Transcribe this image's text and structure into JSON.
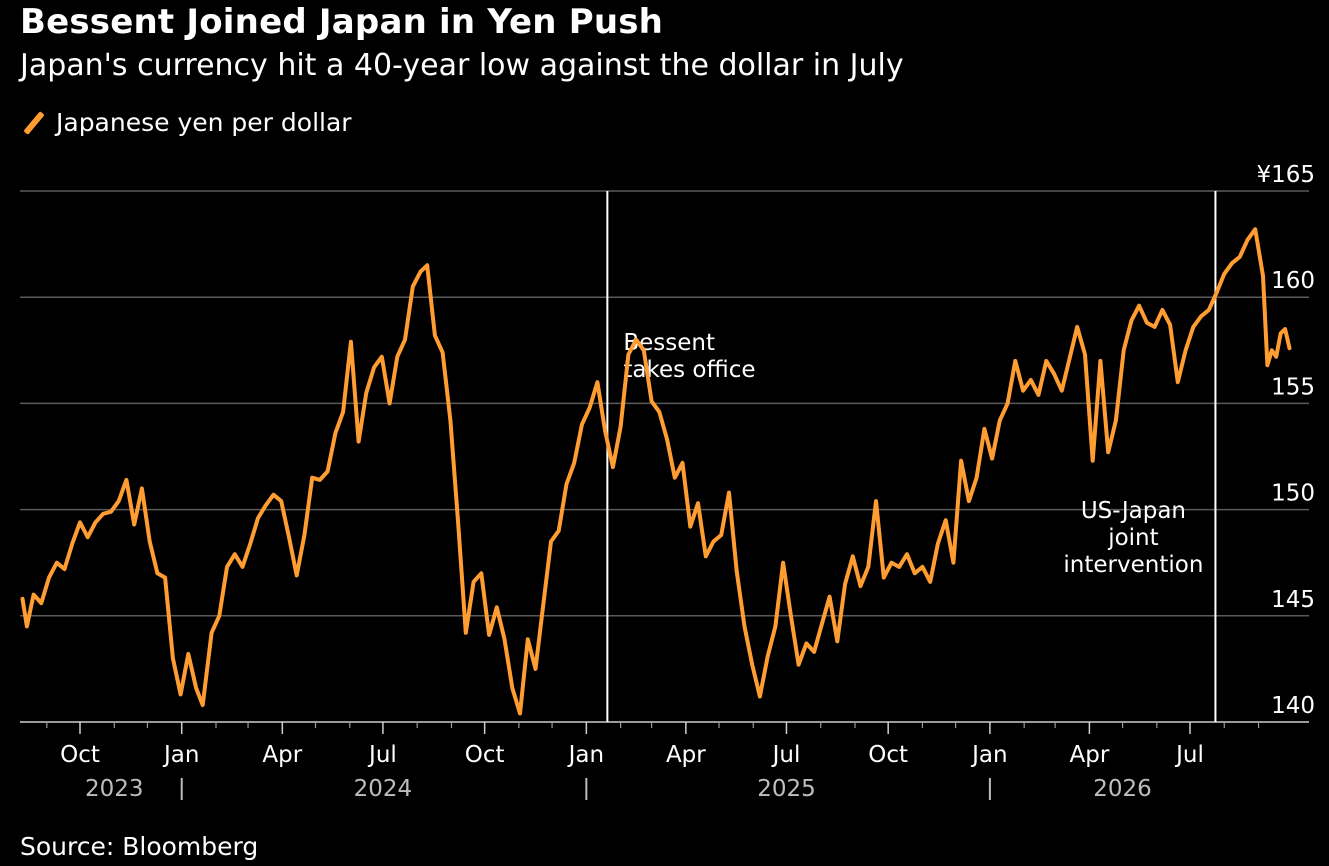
{
  "header": {
    "title": "Bessent Joined Japan in Yen Push",
    "subtitle": "Japan's currency hit a 40-year low against the dollar in July"
  },
  "footer": {
    "source": "Source: Bloomberg"
  },
  "colors": {
    "series": "#ff9d33",
    "grid": "#5a5a5a",
    "background": "#000000",
    "text": "#ffffff",
    "year_text": "#bdbdbd"
  },
  "chart_data": {
    "type": "line",
    "title": "Bessent Joined Japan in Yen Push",
    "subtitle": "Japan's currency hit a 40-year low against the dollar in July",
    "xlabel": "",
    "ylabel": "",
    "ylim": [
      140,
      165
    ],
    "xlim": [
      "2023-08-10",
      "2026-08-31"
    ],
    "grid": true,
    "legend_position": "top-left",
    "y_ticks": [
      {
        "value": 165,
        "label": "¥165"
      },
      {
        "value": 160,
        "label": "160"
      },
      {
        "value": 155,
        "label": "155"
      },
      {
        "value": 150,
        "label": "150"
      },
      {
        "value": 145,
        "label": "145"
      },
      {
        "value": 140,
        "label": "140"
      }
    ],
    "x_ticks": [
      {
        "date": "2023-10-01",
        "label": "Oct"
      },
      {
        "date": "2024-01-01",
        "label": "Jan"
      },
      {
        "date": "2024-04-01",
        "label": "Apr"
      },
      {
        "date": "2024-07-01",
        "label": "Jul"
      },
      {
        "date": "2024-10-01",
        "label": "Oct"
      },
      {
        "date": "2025-01-01",
        "label": "Jan"
      },
      {
        "date": "2025-04-01",
        "label": "Apr"
      },
      {
        "date": "2025-07-01",
        "label": "Jul"
      },
      {
        "date": "2025-10-01",
        "label": "Oct"
      },
      {
        "date": "2026-01-01",
        "label": "Jan"
      },
      {
        "date": "2026-04-01",
        "label": "Apr"
      },
      {
        "date": "2026-07-01",
        "label": "Jul"
      }
    ],
    "year_labels": [
      {
        "label": "2023",
        "date": "2023-11-01"
      },
      {
        "label": "2024",
        "date": "2024-07-01"
      },
      {
        "label": "2025",
        "date": "2025-07-01"
      },
      {
        "label": "2026",
        "date": "2026-05-01"
      }
    ],
    "year_separators": [
      "2024-01-01",
      "2025-01-01",
      "2026-01-01"
    ],
    "annotations": [
      {
        "date": "2025-01-20",
        "lines": [
          "Bessent",
          "takes office"
        ],
        "position": "right-top"
      },
      {
        "date": "2026-07-24",
        "lines": [
          "US-Japan",
          "joint",
          "intervention"
        ],
        "position": "left-middle"
      }
    ],
    "series": [
      {
        "name": "Japanese yen per dollar",
        "points": [
          [
            "2023-08-10",
            145.8
          ],
          [
            "2023-08-14",
            144.5
          ],
          [
            "2023-08-20",
            146.0
          ],
          [
            "2023-08-27",
            145.6
          ],
          [
            "2023-09-03",
            146.8
          ],
          [
            "2023-09-10",
            147.5
          ],
          [
            "2023-09-17",
            147.2
          ],
          [
            "2023-09-24",
            148.4
          ],
          [
            "2023-10-01",
            149.4
          ],
          [
            "2023-10-08",
            148.7
          ],
          [
            "2023-10-15",
            149.4
          ],
          [
            "2023-10-22",
            149.8
          ],
          [
            "2023-10-29",
            149.9
          ],
          [
            "2023-11-05",
            150.4
          ],
          [
            "2023-11-12",
            151.4
          ],
          [
            "2023-11-19",
            149.3
          ],
          [
            "2023-11-26",
            151.0
          ],
          [
            "2023-12-03",
            148.5
          ],
          [
            "2023-12-10",
            147.0
          ],
          [
            "2023-12-17",
            146.8
          ],
          [
            "2023-12-24",
            143.0
          ],
          [
            "2023-12-31",
            141.3
          ],
          [
            "2024-01-07",
            143.2
          ],
          [
            "2024-01-14",
            141.6
          ],
          [
            "2024-01-20",
            140.8
          ],
          [
            "2024-01-28",
            144.2
          ],
          [
            "2024-02-04",
            145.0
          ],
          [
            "2024-02-11",
            147.3
          ],
          [
            "2024-02-18",
            147.9
          ],
          [
            "2024-02-25",
            147.3
          ],
          [
            "2024-03-03",
            148.4
          ],
          [
            "2024-03-10",
            149.6
          ],
          [
            "2024-03-17",
            150.2
          ],
          [
            "2024-03-24",
            150.7
          ],
          [
            "2024-03-31",
            150.4
          ],
          [
            "2024-04-07",
            148.7
          ],
          [
            "2024-04-14",
            146.9
          ],
          [
            "2024-04-21",
            148.8
          ],
          [
            "2024-04-28",
            151.5
          ],
          [
            "2024-05-05",
            151.4
          ],
          [
            "2024-05-12",
            151.8
          ],
          [
            "2024-05-19",
            153.6
          ],
          [
            "2024-05-26",
            154.6
          ],
          [
            "2024-06-02",
            157.9
          ],
          [
            "2024-06-09",
            153.2
          ],
          [
            "2024-06-16",
            155.5
          ],
          [
            "2024-06-23",
            156.7
          ],
          [
            "2024-06-30",
            157.2
          ],
          [
            "2024-07-07",
            155.0
          ],
          [
            "2024-07-14",
            157.2
          ],
          [
            "2024-07-21",
            158.0
          ],
          [
            "2024-07-28",
            160.5
          ],
          [
            "2024-08-04",
            161.2
          ],
          [
            "2024-08-10",
            161.5
          ],
          [
            "2024-08-17",
            158.2
          ],
          [
            "2024-08-24",
            157.4
          ],
          [
            "2024-08-31",
            154.2
          ],
          [
            "2024-09-07",
            149.4
          ],
          [
            "2024-09-14",
            144.2
          ],
          [
            "2024-09-21",
            146.6
          ],
          [
            "2024-09-28",
            147.0
          ],
          [
            "2024-10-05",
            144.1
          ],
          [
            "2024-10-12",
            145.4
          ],
          [
            "2024-10-19",
            143.9
          ],
          [
            "2024-10-26",
            141.6
          ],
          [
            "2024-11-02",
            140.4
          ],
          [
            "2024-11-09",
            143.9
          ],
          [
            "2024-11-16",
            142.5
          ],
          [
            "2024-11-23",
            145.5
          ],
          [
            "2024-11-30",
            148.5
          ],
          [
            "2024-12-07",
            149.0
          ],
          [
            "2024-12-14",
            151.2
          ],
          [
            "2024-12-21",
            152.2
          ],
          [
            "2024-12-28",
            154.0
          ],
          [
            "2025-01-04",
            154.8
          ],
          [
            "2025-01-11",
            156.0
          ],
          [
            "2025-01-18",
            153.7
          ],
          [
            "2025-01-25",
            152.0
          ],
          [
            "2025-02-01",
            153.9
          ],
          [
            "2025-02-08",
            157.3
          ],
          [
            "2025-02-15",
            158.0
          ],
          [
            "2025-02-22",
            157.5
          ],
          [
            "2025-03-01",
            155.1
          ],
          [
            "2025-03-08",
            154.6
          ],
          [
            "2025-03-15",
            153.3
          ],
          [
            "2025-03-22",
            151.5
          ],
          [
            "2025-03-29",
            152.2
          ],
          [
            "2025-04-05",
            149.2
          ],
          [
            "2025-04-12",
            150.3
          ],
          [
            "2025-04-19",
            147.8
          ],
          [
            "2025-04-26",
            148.5
          ],
          [
            "2025-05-03",
            148.8
          ],
          [
            "2025-05-10",
            150.8
          ],
          [
            "2025-05-17",
            147.1
          ],
          [
            "2025-05-24",
            144.5
          ],
          [
            "2025-05-31",
            142.7
          ],
          [
            "2025-06-07",
            141.2
          ],
          [
            "2025-06-14",
            143.1
          ],
          [
            "2025-06-21",
            144.5
          ],
          [
            "2025-06-28",
            147.5
          ],
          [
            "2025-07-05",
            145.0
          ],
          [
            "2025-07-12",
            142.7
          ],
          [
            "2025-07-19",
            143.7
          ],
          [
            "2025-07-26",
            143.3
          ],
          [
            "2025-08-02",
            144.6
          ],
          [
            "2025-08-09",
            145.9
          ],
          [
            "2025-08-16",
            143.8
          ],
          [
            "2025-08-23",
            146.5
          ],
          [
            "2025-08-30",
            147.8
          ],
          [
            "2025-09-06",
            146.4
          ],
          [
            "2025-09-13",
            147.3
          ],
          [
            "2025-09-20",
            150.4
          ],
          [
            "2025-09-27",
            146.8
          ],
          [
            "2025-10-04",
            147.5
          ],
          [
            "2025-10-11",
            147.3
          ],
          [
            "2025-10-18",
            147.9
          ],
          [
            "2025-10-25",
            147.0
          ],
          [
            "2025-11-01",
            147.3
          ],
          [
            "2025-11-08",
            146.6
          ],
          [
            "2025-11-15",
            148.4
          ],
          [
            "2025-11-22",
            149.5
          ],
          [
            "2025-11-29",
            147.5
          ],
          [
            "2025-12-06",
            152.3
          ],
          [
            "2025-12-13",
            150.4
          ],
          [
            "2025-12-20",
            151.5
          ],
          [
            "2025-12-27",
            153.8
          ],
          [
            "2026-01-03",
            152.4
          ],
          [
            "2026-01-10",
            154.2
          ],
          [
            "2026-01-17",
            155.0
          ],
          [
            "2026-01-24",
            157.0
          ],
          [
            "2026-01-31",
            155.6
          ],
          [
            "2026-02-07",
            156.1
          ],
          [
            "2026-02-14",
            155.4
          ],
          [
            "2026-02-21",
            157.0
          ],
          [
            "2026-02-28",
            156.4
          ],
          [
            "2026-03-07",
            155.6
          ],
          [
            "2026-03-14",
            157.1
          ],
          [
            "2026-03-21",
            158.6
          ],
          [
            "2026-03-28",
            157.3
          ],
          [
            "2026-04-04",
            152.3
          ],
          [
            "2026-04-11",
            157.0
          ],
          [
            "2026-04-18",
            152.7
          ],
          [
            "2026-04-25",
            154.2
          ],
          [
            "2026-05-02",
            157.5
          ],
          [
            "2026-05-09",
            158.9
          ],
          [
            "2026-05-16",
            159.6
          ],
          [
            "2026-05-23",
            158.8
          ],
          [
            "2026-05-30",
            158.6
          ],
          [
            "2026-06-06",
            159.4
          ],
          [
            "2026-06-13",
            158.7
          ],
          [
            "2026-06-20",
            156.0
          ],
          [
            "2026-06-27",
            157.5
          ],
          [
            "2026-07-04",
            158.6
          ],
          [
            "2026-07-11",
            159.1
          ],
          [
            "2026-07-18",
            159.4
          ],
          [
            "2026-07-25",
            160.2
          ],
          [
            "2026-08-01",
            161.1
          ],
          [
            "2026-08-08",
            161.6
          ],
          [
            "2026-08-15",
            161.9
          ],
          [
            "2026-08-22",
            162.7
          ],
          [
            "2026-08-29",
            163.2
          ],
          [
            "2026-09-05",
            161.0
          ],
          [
            "2026-09-09",
            156.8
          ],
          [
            "2026-09-13",
            157.5
          ],
          [
            "2026-09-17",
            157.2
          ],
          [
            "2026-09-21",
            158.3
          ],
          [
            "2026-09-25",
            158.5
          ],
          [
            "2026-09-29",
            157.6
          ]
        ]
      }
    ]
  }
}
